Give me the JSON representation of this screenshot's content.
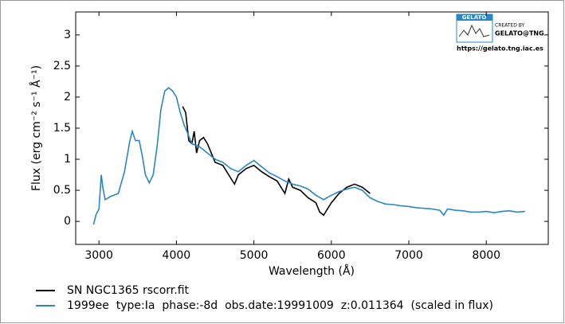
{
  "chart_data": {
    "type": "line",
    "xlabel": "Wavelength (Å)",
    "ylabel": "Flux (erg cm⁻² s⁻¹ Å⁻¹)",
    "xlim": [
      2700,
      8800
    ],
    "xticks": [
      3000,
      4000,
      5000,
      6000,
      7000,
      8000
    ],
    "ylim": [
      -0.37,
      3.37
    ],
    "yticks": [
      0,
      0.5,
      1,
      1.5,
      2,
      2.5,
      3
    ],
    "legend": "lower-left-outside",
    "annotations": [
      "GELATO",
      "CREATED BY",
      "GELATO@TNG",
      "https://gelato.tng.iac.es"
    ],
    "series": [
      {
        "name": "SN NGC1365 rscorr.fit",
        "color": "#000000",
        "x": [
          4080,
          4120,
          4160,
          4200,
          4230,
          4260,
          4300,
          4350,
          4400,
          4450,
          4500,
          4600,
          4700,
          4750,
          4800,
          4900,
          5000,
          5100,
          5200,
          5300,
          5400,
          5450,
          5500,
          5600,
          5700,
          5800,
          5850,
          5900,
          5950,
          6000,
          6100,
          6200,
          6300,
          6400,
          6500
        ],
        "values": [
          1.85,
          1.75,
          1.3,
          1.25,
          1.45,
          1.1,
          1.3,
          1.35,
          1.25,
          1.1,
          0.95,
          0.9,
          0.7,
          0.6,
          0.75,
          0.85,
          0.9,
          0.8,
          0.72,
          0.65,
          0.45,
          0.68,
          0.55,
          0.5,
          0.38,
          0.3,
          0.15,
          0.1,
          0.2,
          0.3,
          0.45,
          0.55,
          0.6,
          0.55,
          0.45
        ]
      },
      {
        "name": "1999ee  type:Ia  phase:-8d  obs.date:19991009  z:0.011364  (scaled in flux)",
        "color": "#2a86c4",
        "x": [
          2930,
          2960,
          3000,
          3030,
          3050,
          3080,
          3150,
          3250,
          3330,
          3400,
          3430,
          3470,
          3520,
          3560,
          3600,
          3650,
          3700,
          3750,
          3800,
          3850,
          3900,
          3950,
          4000,
          4050,
          4100,
          4150,
          4200,
          4300,
          4400,
          4500,
          4600,
          4700,
          4800,
          4900,
          5000,
          5100,
          5200,
          5300,
          5400,
          5500,
          5600,
          5700,
          5800,
          5900,
          6000,
          6100,
          6200,
          6300,
          6400,
          6500,
          6600,
          6700,
          6800,
          6900,
          7000,
          7100,
          7200,
          7300,
          7400,
          7450,
          7500,
          7600,
          7700,
          7800,
          7900,
          8000,
          8100,
          8200,
          8300,
          8400,
          8500
        ],
        "values": [
          -0.05,
          0.1,
          0.2,
          0.75,
          0.55,
          0.35,
          0.4,
          0.45,
          0.8,
          1.3,
          1.45,
          1.3,
          1.3,
          1.05,
          0.75,
          0.62,
          0.75,
          1.2,
          1.8,
          2.1,
          2.15,
          2.1,
          2.0,
          1.75,
          1.55,
          1.4,
          1.25,
          1.2,
          1.1,
          1.0,
          0.95,
          0.85,
          0.8,
          0.9,
          0.98,
          0.88,
          0.78,
          0.72,
          0.65,
          0.6,
          0.57,
          0.52,
          0.42,
          0.35,
          0.42,
          0.48,
          0.52,
          0.55,
          0.5,
          0.38,
          0.32,
          0.28,
          0.27,
          0.25,
          0.24,
          0.22,
          0.21,
          0.2,
          0.18,
          0.1,
          0.2,
          0.18,
          0.17,
          0.15,
          0.15,
          0.16,
          0.14,
          0.16,
          0.17,
          0.15,
          0.16
        ]
      }
    ]
  }
}
